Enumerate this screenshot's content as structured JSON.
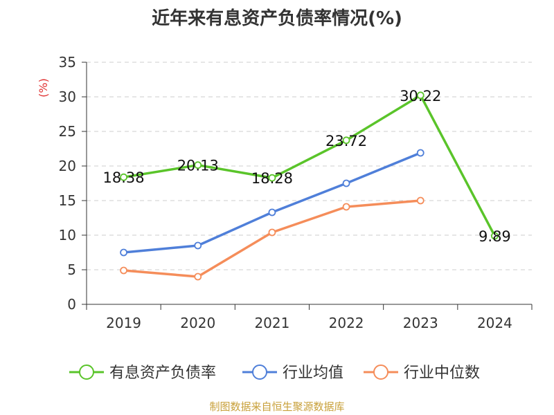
{
  "title": "近年来有息资产负债率情况(%)",
  "source": "制图数据来自恒生聚源数据库",
  "chart_data": {
    "type": "line",
    "title": "近年来有息资产负债率情况(%)",
    "ylabel": "(%)",
    "xlabel": "",
    "ylim": [
      0,
      35
    ],
    "yticks": [
      "0",
      "5",
      "10",
      "15",
      "20",
      "25",
      "30",
      "35"
    ],
    "categories": [
      "2019",
      "2020",
      "2021",
      "2022",
      "2023",
      "2024"
    ],
    "grid": true,
    "legend_position": "bottom",
    "series": [
      {
        "name": "有息资产负债率",
        "color": "#5ac42a",
        "values": [
          18.38,
          20.13,
          18.28,
          23.72,
          30.22,
          9.89
        ],
        "labels": [
          "18.38",
          "20.13",
          "18.28",
          "23.72",
          "30.22",
          "9.89"
        ]
      },
      {
        "name": "行业均值",
        "color": "#4f7fd9",
        "values": [
          7.5,
          8.5,
          13.3,
          17.5,
          21.9,
          null
        ]
      },
      {
        "name": "行业中位数",
        "color": "#f58d5a",
        "values": [
          4.9,
          4.0,
          10.4,
          14.1,
          15.0,
          null
        ]
      }
    ]
  }
}
